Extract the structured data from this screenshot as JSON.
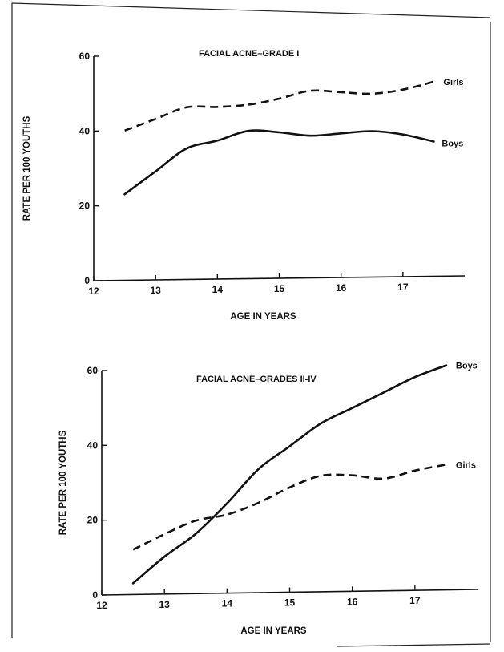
{
  "chart_data": [
    {
      "type": "line",
      "title": "FACIAL ACNE–GRADE I",
      "xlabel": "AGE IN YEARS",
      "ylabel": "RATE PER 100 YOUTHS",
      "xlim": [
        12,
        18
      ],
      "ylim": [
        0,
        60
      ],
      "x_ticks": [
        "12",
        "13",
        "14",
        "15",
        "16",
        "17"
      ],
      "y_ticks": [
        "0",
        "20",
        "40",
        "60"
      ],
      "legend": "end-of-line labels",
      "grid": false,
      "series": [
        {
          "name": "Girls",
          "style": "dashed",
          "x": [
            12.5,
            13,
            13.5,
            14,
            14.5,
            15,
            15.5,
            16,
            16.5,
            17,
            17.5
          ],
          "y": [
            40,
            43,
            46,
            46,
            46.5,
            48,
            50,
            49.5,
            49,
            50,
            52
          ]
        },
        {
          "name": "Boys",
          "style": "solid",
          "x": [
            12.5,
            13,
            13.5,
            14,
            14.5,
            15,
            15.5,
            16,
            16.5,
            17,
            17.5
          ],
          "y": [
            23,
            29,
            35,
            37,
            39.5,
            39,
            38,
            38.5,
            39,
            38,
            36
          ]
        }
      ]
    },
    {
      "type": "line",
      "title": "FACIAL ACNE–GRADES II-IV",
      "xlabel": "AGE IN YEARS",
      "ylabel": "RATE PER 100 YOUTHS",
      "xlim": [
        12,
        18
      ],
      "ylim": [
        0,
        60
      ],
      "x_ticks": [
        "12",
        "13",
        "14",
        "15",
        "16",
        "17"
      ],
      "y_ticks": [
        "0",
        "20",
        "40",
        "60"
      ],
      "legend": "end-of-line labels",
      "grid": false,
      "series": [
        {
          "name": "Boys",
          "style": "solid",
          "x": [
            12.5,
            13,
            13.5,
            14,
            14.5,
            15,
            15.5,
            16,
            16.5,
            17,
            17.5
          ],
          "y": [
            3,
            10,
            16,
            24,
            33,
            39,
            45,
            49,
            53,
            57,
            60
          ]
        },
        {
          "name": "Girls",
          "style": "dashed",
          "x": [
            12.5,
            13,
            13.5,
            14,
            14.5,
            15,
            15.5,
            16,
            16.5,
            17,
            17.5
          ],
          "y": [
            12,
            16,
            19.5,
            21,
            24,
            28,
            31,
            31,
            30,
            32,
            33.5
          ]
        }
      ]
    }
  ]
}
